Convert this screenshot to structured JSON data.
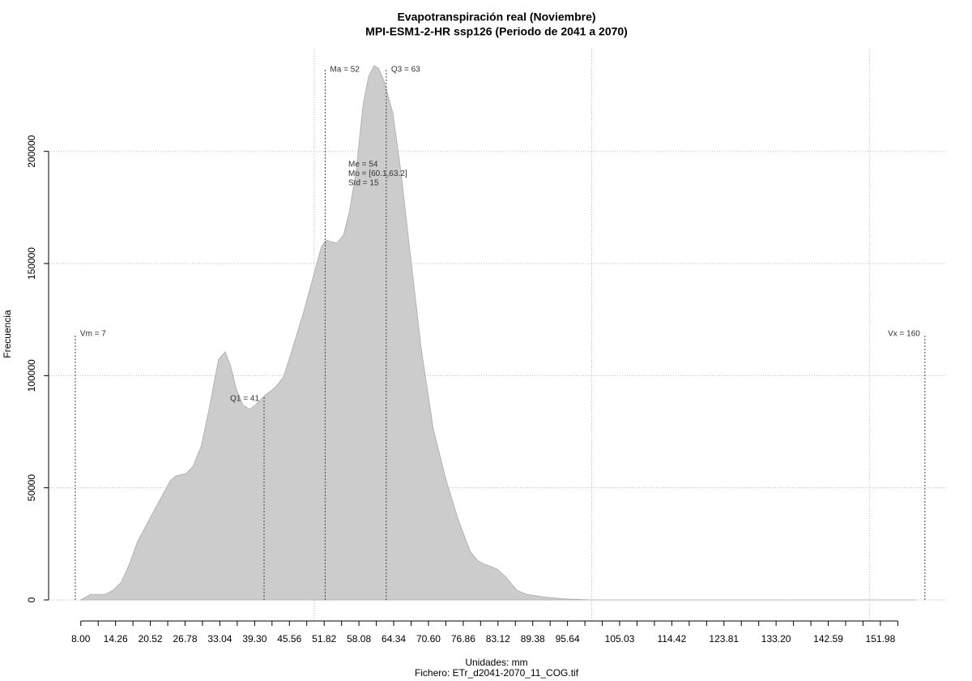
{
  "chart_data": {
    "type": "area",
    "title": "Evapotranspiración real (Noviembre)",
    "subtitle": "MPI-ESM1-2-HR ssp126 (Periodo de 2041 a 2070)",
    "x_label": "Unidades: mm",
    "caption": "Fichero: ETr_d2041-2070_11_COG.tif",
    "y_label": "Frecuencia",
    "color": "#cccccc",
    "x": [
      8.0,
      9.75,
      12.4,
      13.8,
      15.3,
      16.8,
      18.2,
      20.4,
      22.6,
      24.1,
      25.1,
      27.0,
      28.2,
      29.7,
      31.1,
      32.8,
      34.0,
      35.0,
      36.0,
      37.2,
      38.4,
      39.4,
      41.1,
      43.0,
      44.5,
      45.9,
      48.1,
      50.3,
      51.3,
      52.2,
      52.9,
      54.1,
      55.3,
      56.4,
      57.6,
      58.8,
      59.8,
      60.8,
      61.6,
      62.6,
      64.2,
      65.6,
      67.1,
      69.3,
      71.5,
      73.7,
      75.9,
      78.1,
      79.5,
      81.0,
      83.0,
      84.6,
      86.5,
      88.3,
      91.2,
      94.1,
      95.6,
      100.0,
      158.3
    ],
    "values": [
      0,
      2500,
      2500,
      4300,
      8000,
      16300,
      26000,
      36200,
      46300,
      53100,
      55300,
      56400,
      59600,
      68700,
      85000,
      107400,
      110600,
      104100,
      94000,
      86800,
      85000,
      86800,
      91100,
      94700,
      99400,
      110300,
      128300,
      148200,
      157300,
      160500,
      159800,
      159100,
      162700,
      173500,
      191600,
      220500,
      233200,
      238200,
      237100,
      231400,
      216900,
      191600,
      159100,
      112100,
      75900,
      54200,
      36200,
      21700,
      17400,
      15600,
      13700,
      10100,
      4300,
      2500,
      1400,
      700,
      400,
      0,
      0
    ],
    "xlim": [
      2.2,
      164.1
    ],
    "ylim": [
      -9400,
      245800
    ],
    "yticks": [
      0,
      50000,
      100000,
      150000,
      200000
    ],
    "xticks": [
      {
        "value": 8.0,
        "label": "8.00"
      },
      {
        "value": 14.26,
        "label": "14.26"
      },
      {
        "value": 20.52,
        "label": "20.52"
      },
      {
        "value": 26.78,
        "label": "26.78"
      },
      {
        "value": 33.04,
        "label": "33.04"
      },
      {
        "value": 39.3,
        "label": "39.30"
      },
      {
        "value": 45.56,
        "label": "45.56"
      },
      {
        "value": 51.82,
        "label": "51.82"
      },
      {
        "value": 58.08,
        "label": "58.08"
      },
      {
        "value": 64.34,
        "label": "64.34"
      },
      {
        "value": 70.6,
        "label": "70.60"
      },
      {
        "value": 76.86,
        "label": "76.86"
      },
      {
        "value": 83.12,
        "label": "83.12"
      },
      {
        "value": 89.38,
        "label": "89.38"
      },
      {
        "value": 95.64,
        "label": "95.64"
      },
      {
        "value": 105.03,
        "label": "105.03"
      },
      {
        "value": 114.42,
        "label": "114.42"
      },
      {
        "value": 123.81,
        "label": "123.81"
      },
      {
        "value": 133.2,
        "label": "133.20"
      },
      {
        "value": 142.59,
        "label": "142.59"
      },
      {
        "value": 151.98,
        "label": "151.98"
      }
    ],
    "xticks_minor": [
      11.13,
      17.39,
      23.65,
      29.91,
      36.17,
      42.43,
      48.69,
      54.95,
      61.21,
      67.47,
      73.73,
      79.99,
      86.25,
      92.51,
      98.77,
      101.9,
      108.16,
      111.29,
      117.55,
      120.68,
      126.94,
      130.07,
      136.33,
      139.46,
      145.72,
      148.85,
      155.11
    ],
    "grid": true,
    "xgrid": [
      50,
      100,
      150
    ],
    "markers": [
      {
        "label": "Vm = 7",
        "x": 7,
        "y": 118600
      },
      {
        "label": "Q1 = 41",
        "x": 41,
        "y": 90400
      },
      {
        "label": "Ma = 52",
        "x": 52,
        "y": 236400
      },
      {
        "label": "Q3 = 63",
        "x": 63,
        "y": 236400
      },
      {
        "label": "Vx = 160",
        "x": 160,
        "y": 118600
      }
    ],
    "annotations": [
      "Me = 54",
      "Mo = [60.1,63.2]",
      "Std = 15"
    ]
  }
}
